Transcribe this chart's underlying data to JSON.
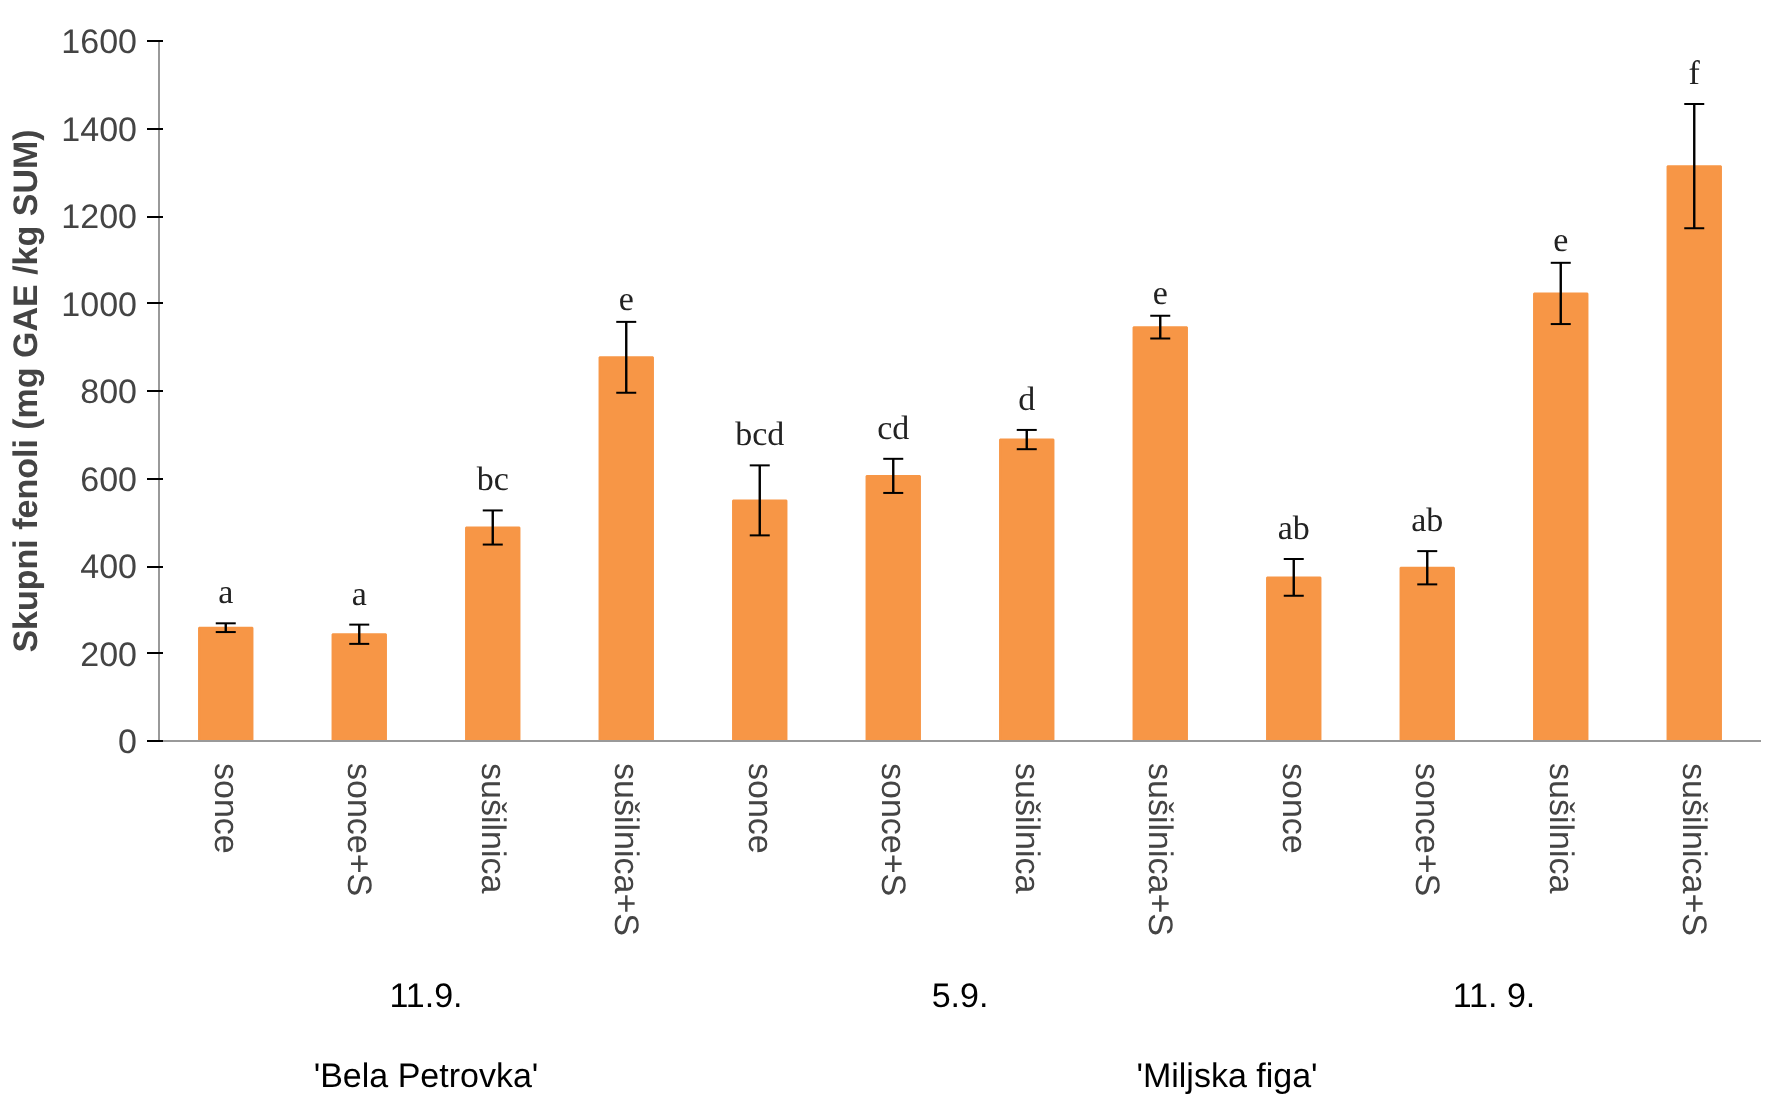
{
  "chart_data": {
    "type": "bar",
    "ylabel": "Skupni fenoli (mg GAE /kg SUM)",
    "categories": [
      "sonce",
      "sonce+S",
      "sušilnica",
      "sušilnica+S",
      "sonce",
      "sonce+S",
      "sušilnica",
      "sušilnica+S",
      "sonce",
      "sonce+S",
      "sušilnica",
      "sušilnica+S"
    ],
    "annotations": [
      "11.9.",
      "5.9.",
      "11. 9.",
      "'Bela Petrovka'",
      "'Miljska figa'"
    ],
    "values": [
      259,
      244,
      488,
      877,
      550,
      606,
      689,
      946,
      374,
      396,
      1023,
      1314
    ],
    "errors": [
      10,
      22,
      39,
      81,
      80,
      39,
      22,
      26,
      42,
      38,
      70,
      142
    ],
    "value_labels": [
      "a",
      "a",
      "bc",
      "e",
      "bcd",
      "cd",
      "d",
      "e",
      "ab",
      "ab",
      "e",
      "f"
    ],
    "color": "#f79646",
    "ylim": [
      0,
      1600
    ],
    "yticks": [
      0,
      200,
      400,
      600,
      800,
      1000,
      1200,
      1400,
      1600
    ],
    "grid": false
  }
}
